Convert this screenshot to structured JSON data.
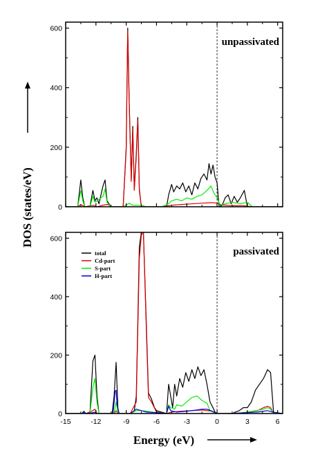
{
  "chart_data": {
    "type": "line",
    "xlabel": "Energy (eV)",
    "ylabel": "DOS (states/eV)",
    "xlim": [
      -15,
      6.5
    ],
    "xticks": [
      "-15",
      "-12",
      "-9",
      "-6",
      "-3",
      "0",
      "3",
      "6"
    ],
    "xtick_values": [
      -15,
      -12,
      -9,
      -6,
      -3,
      0,
      3,
      6
    ],
    "fermi_level": 0,
    "panels": [
      {
        "label": "unpassivated",
        "ylim": [
          0,
          620
        ],
        "yticks": [
          "0",
          "200",
          "400",
          "600"
        ],
        "ytick_values": [
          0,
          200,
          400,
          600
        ],
        "series": [
          {
            "name": "total",
            "color": "#000000",
            "x": [
              -15,
              -13.8,
              -13.5,
              -13.3,
              -13.1,
              -12.6,
              -12.3,
              -12.1,
              -11.9,
              -11.7,
              -11.3,
              -11.1,
              -10.9,
              -10.5,
              -10.0,
              -9.3,
              -9.0,
              -8.85,
              -8.7,
              -8.5,
              -8.35,
              -8.2,
              -8.0,
              -7.85,
              -7.7,
              -7.5,
              -7.35,
              -7.2,
              -7.0,
              -6.5,
              -5.5,
              -5.0,
              -4.8,
              -4.5,
              -4.3,
              -4.0,
              -3.7,
              -3.4,
              -3.1,
              -2.8,
              -2.5,
              -2.2,
              -1.9,
              -1.6,
              -1.3,
              -1.0,
              -0.8,
              -0.6,
              -0.4,
              -0.2,
              0.0,
              0.2,
              0.5,
              0.8,
              1.1,
              1.4,
              1.7,
              2.0,
              2.3,
              2.7,
              3.0,
              3.5,
              6.5
            ],
            "y": [
              0,
              0,
              90,
              30,
              0,
              0,
              55,
              20,
              30,
              10,
              70,
              90,
              20,
              0,
              0,
              0,
              200,
              600,
              350,
              90,
              270,
              60,
              180,
              300,
              60,
              0,
              0,
              0,
              0,
              0,
              0,
              0,
              40,
              75,
              50,
              70,
              60,
              80,
              50,
              70,
              40,
              80,
              60,
              95,
              110,
              90,
              145,
              110,
              140,
              100,
              80,
              0,
              5,
              30,
              40,
              10,
              35,
              15,
              30,
              55,
              0,
              0,
              0
            ]
          },
          {
            "name": "Cd-part",
            "color": "#e00000",
            "x": [
              -15,
              -13.8,
              -13.5,
              -13.1,
              -12.3,
              -11.9,
              -11.2,
              -10.8,
              -10.5,
              -9.3,
              -9.0,
              -8.85,
              -8.7,
              -8.5,
              -8.35,
              -8.2,
              -8.0,
              -7.85,
              -7.7,
              -7.5,
              -7.0,
              -5.5,
              -4.5,
              -3.5,
              -2.5,
              -1.5,
              -0.5,
              0.0,
              0.5,
              1.5,
              2.5,
              3.5,
              6.5
            ],
            "y": [
              0,
              0,
              8,
              0,
              5,
              0,
              6,
              8,
              0,
              0,
              190,
              590,
              340,
              85,
              260,
              55,
              170,
              290,
              55,
              0,
              0,
              0,
              5,
              8,
              10,
              12,
              14,
              12,
              6,
              4,
              4,
              0,
              0
            ]
          },
          {
            "name": "S-part",
            "color": "#00ee00",
            "x": [
              -15,
              -13.8,
              -13.5,
              -13.3,
              -13.1,
              -12.6,
              -12.3,
              -12.1,
              -11.9,
              -11.3,
              -11.1,
              -10.9,
              -10.5,
              -9.3,
              -9.0,
              -8.7,
              -8.4,
              -7.5,
              -7.0,
              -5.5,
              -4.8,
              -4.5,
              -4.0,
              -3.5,
              -3.0,
              -2.5,
              -2.0,
              -1.5,
              -1.0,
              -0.6,
              -0.3,
              0.0,
              0.3,
              0.8,
              1.5,
              2.3,
              3.0,
              3.5,
              6.5
            ],
            "y": [
              0,
              0,
              55,
              20,
              0,
              0,
              35,
              15,
              20,
              35,
              60,
              15,
              0,
              0,
              5,
              12,
              5,
              5,
              0,
              0,
              10,
              20,
              25,
              20,
              30,
              25,
              35,
              40,
              55,
              70,
              45,
              30,
              5,
              10,
              15,
              10,
              15,
              0,
              0
            ]
          }
        ]
      },
      {
        "label": "passivated",
        "ylim": [
          0,
          620
        ],
        "yticks": [
          "0",
          "200",
          "400",
          "600"
        ],
        "ytick_values": [
          0,
          200,
          400,
          600
        ],
        "series": [
          {
            "name": "total",
            "color": "#000000",
            "x": [
              -15,
              -13.4,
              -13.2,
              -13.0,
              -12.8,
              -12.6,
              -12.3,
              -12.1,
              -11.9,
              -11.7,
              -10.4,
              -10.2,
              -10.0,
              -9.8,
              -8.6,
              -8.4,
              -8.2,
              -8.0,
              -7.7,
              -7.5,
              -7.3,
              -7.0,
              -6.8,
              -6.5,
              -6.2,
              -6.0,
              -5.5,
              -5.0,
              -4.8,
              -4.6,
              -4.4,
              -4.2,
              -4.0,
              -3.7,
              -3.4,
              -3.1,
              -2.8,
              -2.5,
              -2.2,
              -1.9,
              -1.6,
              -1.3,
              -1.0,
              -0.7,
              -0.4,
              -0.2,
              0.0,
              0.5,
              1.0,
              1.5,
              1.8,
              2.2,
              2.6,
              3.0,
              3.4,
              3.8,
              4.2,
              4.6,
              5.0,
              5.3,
              5.6,
              6.5
            ],
            "y": [
              0,
              0,
              8,
              0,
              0,
              0,
              180,
              200,
              60,
              0,
              0,
              60,
              175,
              0,
              0,
              5,
              10,
              60,
              570,
              620,
              620,
              300,
              70,
              50,
              20,
              10,
              5,
              0,
              100,
              60,
              20,
              100,
              60,
              120,
              90,
              140,
              110,
              150,
              120,
              160,
              130,
              150,
              100,
              40,
              20,
              5,
              0,
              0,
              0,
              0,
              5,
              10,
              20,
              20,
              40,
              80,
              100,
              120,
              150,
              140,
              0,
              0
            ]
          },
          {
            "name": "Cd-part",
            "color": "#e00000",
            "x": [
              -15,
              -13.4,
              -13.2,
              -13.0,
              -12.3,
              -12.1,
              -11.9,
              -10.2,
              -10.0,
              -9.8,
              -8.6,
              -8.0,
              -7.7,
              -7.5,
              -7.3,
              -7.0,
              -6.8,
              -6.5,
              -6.0,
              -5.0,
              -4.5,
              -3.5,
              -2.5,
              -1.5,
              -0.5,
              0.0,
              1.0,
              2.0,
              3.0,
              4.0,
              4.6,
              5.0,
              5.3,
              5.6,
              6.5
            ],
            "y": [
              0,
              0,
              5,
              0,
              10,
              15,
              0,
              0,
              10,
              0,
              0,
              40,
              530,
              610,
              620,
              280,
              55,
              40,
              5,
              0,
              5,
              8,
              10,
              12,
              8,
              0,
              0,
              0,
              5,
              10,
              20,
              25,
              20,
              0,
              0
            ]
          },
          {
            "name": "S-part",
            "color": "#00ee00",
            "x": [
              -15,
              -13.4,
              -13.2,
              -13.0,
              -12.6,
              -12.3,
              -12.1,
              -11.9,
              -11.7,
              -10.2,
              -10.0,
              -9.8,
              -8.6,
              -8.0,
              -7.5,
              -7.0,
              -6.5,
              -6.0,
              -5.0,
              -4.8,
              -4.6,
              -4.2,
              -4.0,
              -3.5,
              -3.0,
              -2.5,
              -2.0,
              -1.5,
              -1.0,
              -0.7,
              -0.4,
              0.0,
              1.0,
              2.0,
              3.0,
              3.8,
              4.2,
              4.6,
              5.0,
              5.3,
              5.6,
              6.5
            ],
            "y": [
              0,
              0,
              6,
              0,
              0,
              90,
              120,
              40,
              0,
              0,
              40,
              0,
              0,
              10,
              10,
              8,
              5,
              3,
              0,
              30,
              20,
              15,
              30,
              25,
              40,
              55,
              60,
              45,
              35,
              10,
              5,
              0,
              0,
              0,
              5,
              10,
              12,
              15,
              20,
              15,
              0,
              0
            ]
          },
          {
            "name": "H-part",
            "color": "#0000dd",
            "x": [
              -15,
              -13.4,
              -13.2,
              -13.0,
              -12.3,
              -12.1,
              -11.9,
              -10.3,
              -10.1,
              -10.0,
              -9.9,
              -9.7,
              -8.6,
              -8.0,
              -7.5,
              -7.0,
              -6.0,
              -5.0,
              -4.8,
              -4.6,
              -4.0,
              -3.0,
              -2.0,
              -1.5,
              -1.0,
              -0.5,
              0.0,
              1.0,
              3.0,
              4.0,
              4.6,
              5.0,
              5.5,
              6.5
            ],
            "y": [
              0,
              0,
              5,
              0,
              3,
              5,
              0,
              0,
              75,
              80,
              30,
              0,
              0,
              15,
              10,
              5,
              3,
              0,
              25,
              10,
              5,
              8,
              12,
              15,
              15,
              8,
              0,
              0,
              3,
              5,
              8,
              10,
              5,
              0
            ]
          }
        ]
      }
    ]
  }
}
